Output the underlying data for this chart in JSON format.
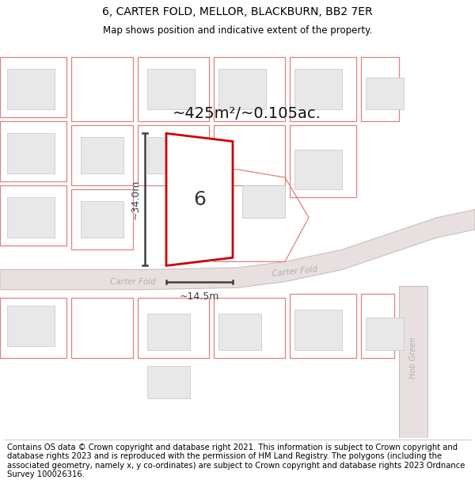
{
  "title": "6, CARTER FOLD, MELLOR, BLACKBURN, BB2 7ER",
  "subtitle": "Map shows position and indicative extent of the property.",
  "footer_text": "Contains OS data © Crown copyright and database right 2021. This information is subject to Crown copyright and database rights 2023 and is reproduced with the permission of HM Land Registry. The polygons (including the associated geometry, namely x, y co-ordinates) are subject to Crown copyright and database rights 2023 Ordnance Survey 100026316.",
  "area_label": "~425m²/~0.105ac.",
  "width_label": "~14.5m",
  "height_label": "~34.0m",
  "plot_number": "6",
  "map_bg": "#ffffff",
  "road_fill": "#e8e0e0",
  "road_edge": "#c8b8b8",
  "road_label_color": "#b0b0b0",
  "building_fill": "#e8e8e8",
  "building_edge": "#cccccc",
  "highlight_fill": "#ffffff",
  "highlight_edge": "#cc0000",
  "other_poly_edge": "#e08080",
  "dim_color": "#404040",
  "title_fontsize": 10,
  "subtitle_fontsize": 8.5,
  "footer_fontsize": 7.2,
  "area_fontsize": 14,
  "plot_num_fontsize": 18
}
